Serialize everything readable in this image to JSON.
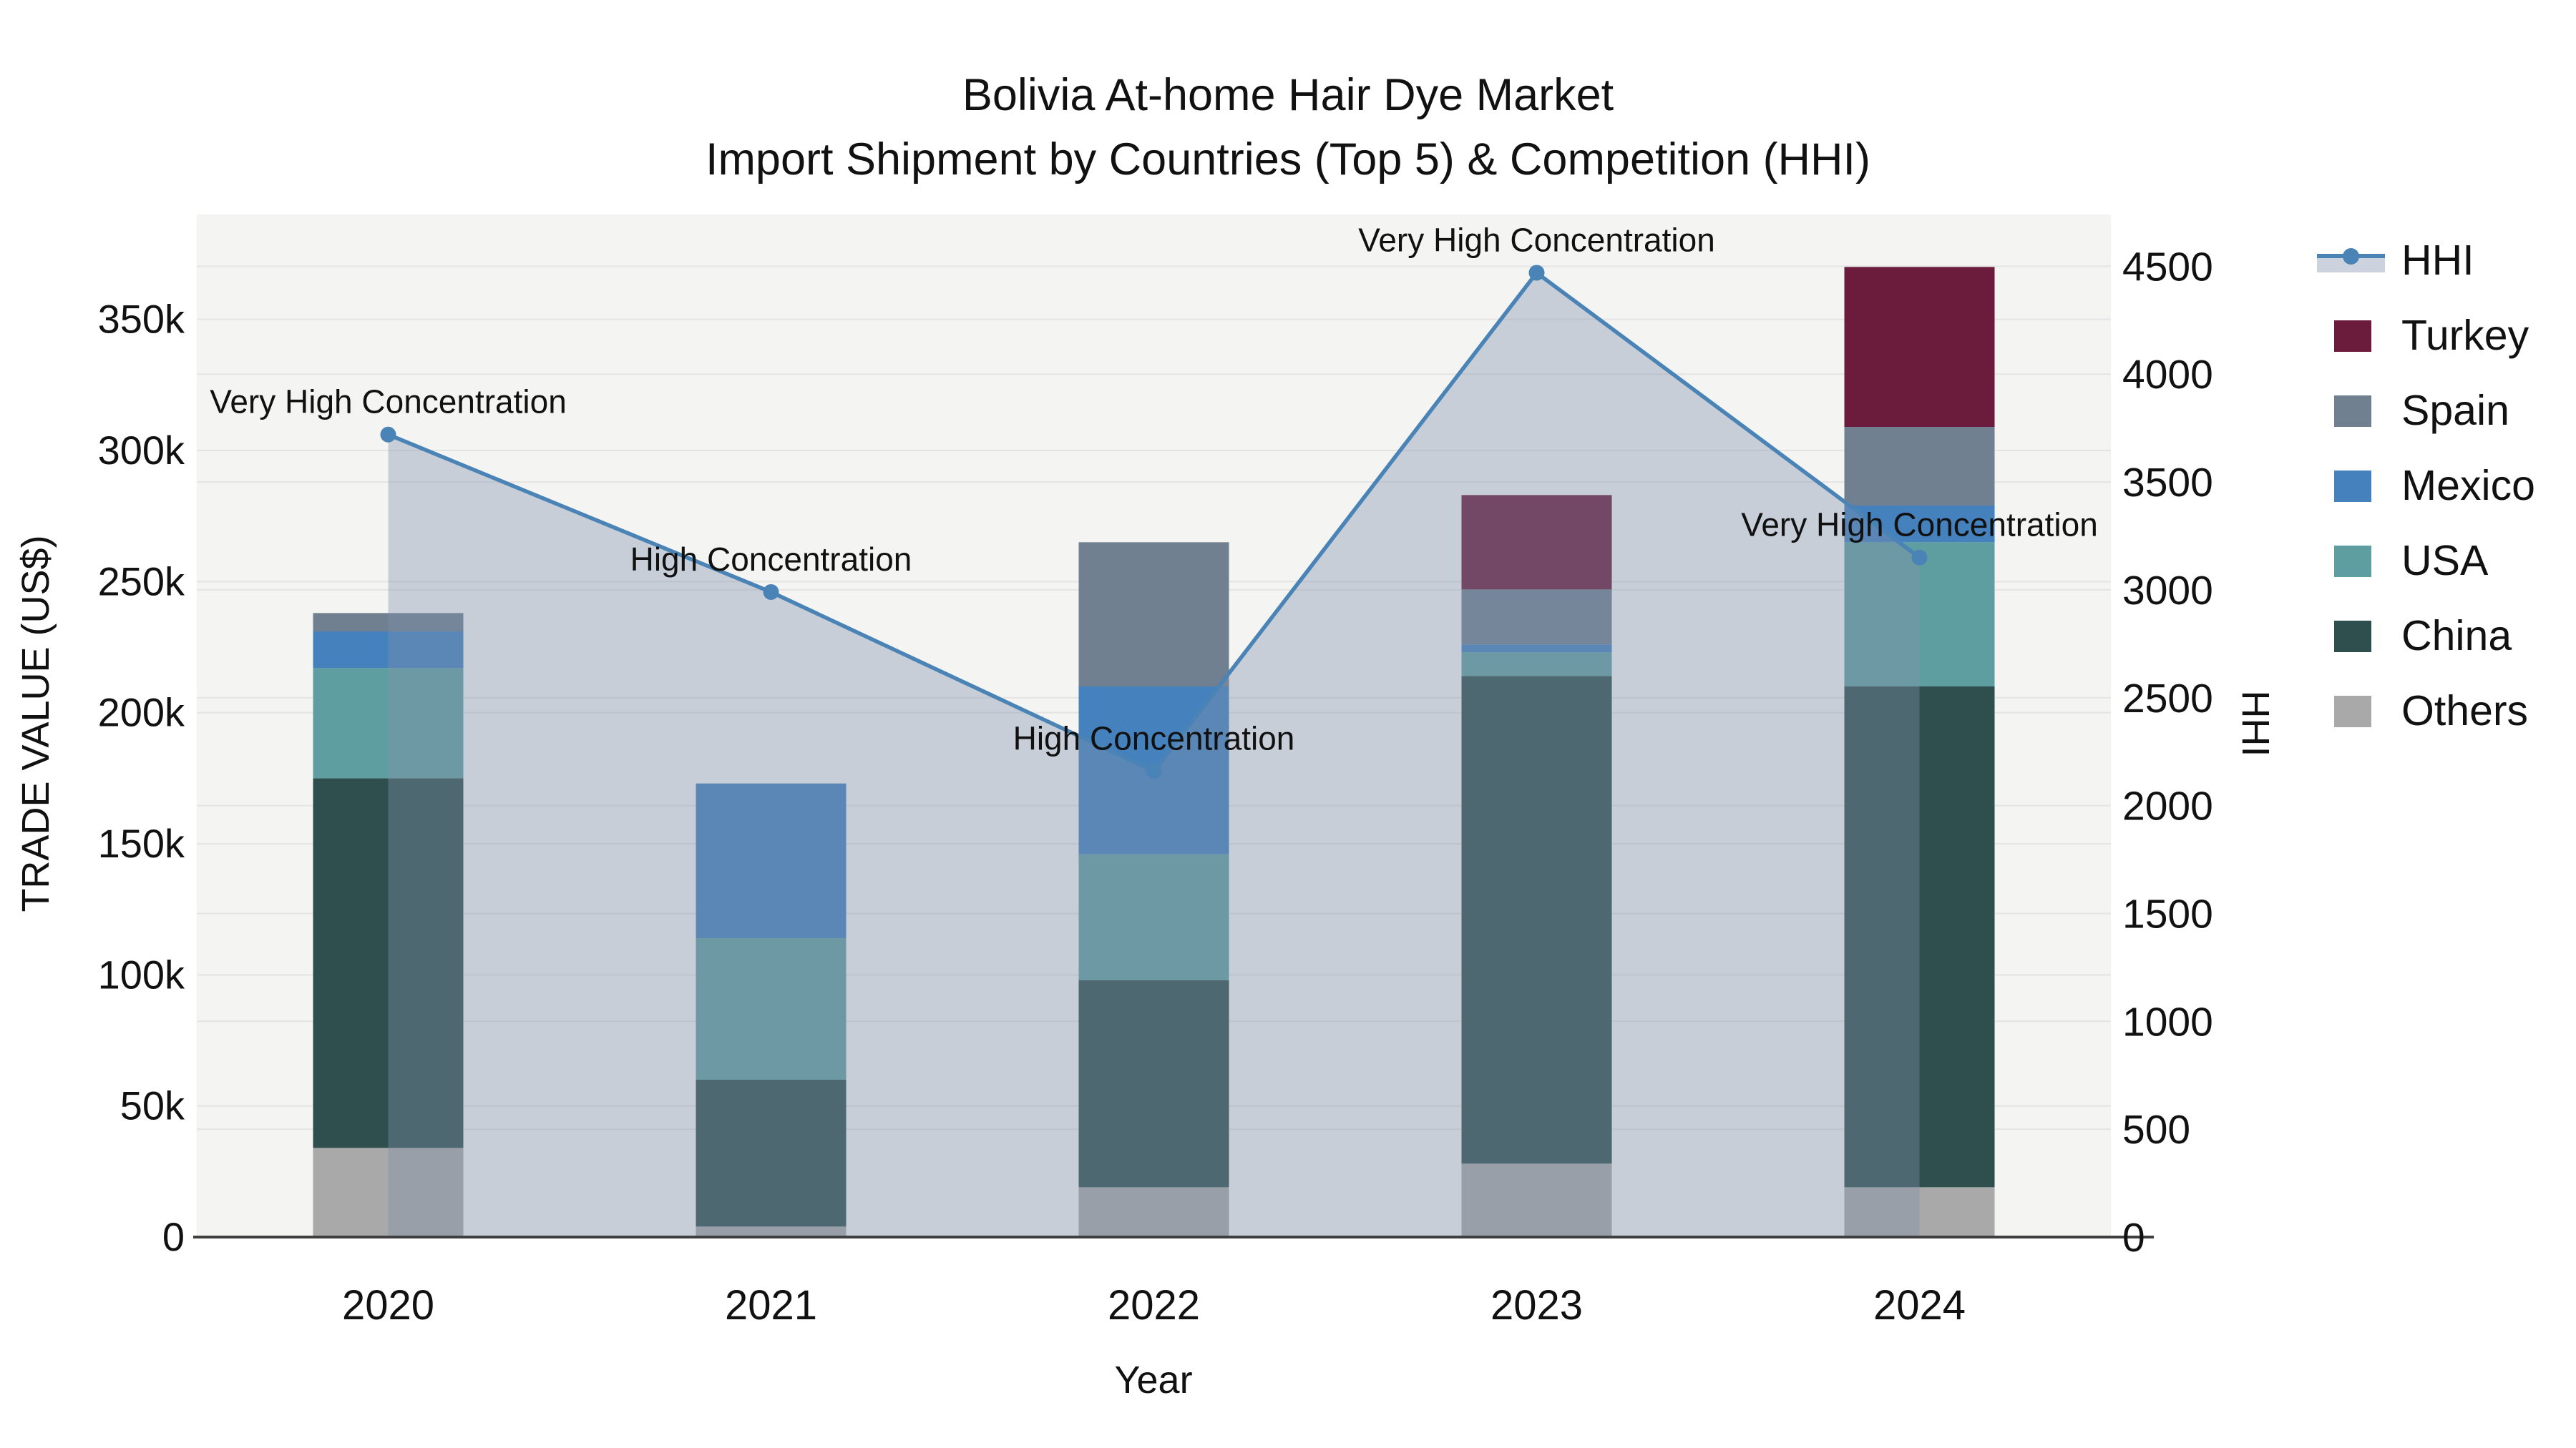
{
  "title": {
    "line1": "Bolivia At-home Hair Dye Market",
    "line2": "Import Shipment by Countries (Top 5) & Competition (HHI)"
  },
  "chart_data": {
    "type": "bar+line",
    "categories": [
      "2020",
      "2021",
      "2022",
      "2023",
      "2024"
    ],
    "series": [
      {
        "name": "Others",
        "color": "#a9a9a9",
        "values": [
          34000,
          4000,
          19000,
          28000,
          19000
        ]
      },
      {
        "name": "China",
        "color": "#2f4f4f",
        "values": [
          141000,
          56000,
          79000,
          186000,
          191000
        ]
      },
      {
        "name": "USA",
        "color": "#5f9ea0",
        "values": [
          42000,
          54000,
          48000,
          9000,
          55000
        ]
      },
      {
        "name": "Mexico",
        "color": "#4481bd",
        "values": [
          14000,
          59000,
          64000,
          3000,
          14000
        ]
      },
      {
        "name": "Spain",
        "color": "#708090",
        "values": [
          7000,
          0,
          55000,
          21000,
          30000
        ]
      },
      {
        "name": "Turkey",
        "color": "#6b1b3c",
        "values": [
          0,
          0,
          0,
          36000,
          61000
        ]
      }
    ],
    "line": {
      "name": "HHI",
      "color": "#4a83b5",
      "fill": "rgba(130,145,170,0.38)",
      "values": [
        3720,
        2990,
        2160,
        4470,
        3150
      ],
      "annotations": [
        "Very High Concentration",
        "High Concentration",
        "High Concentration",
        "Very High Concentration",
        "Very High Concentration"
      ]
    },
    "xlabel": "Year",
    "ylabel": "TRADE VALUE (US$)",
    "y2label": "HHI",
    "ylim": [
      0,
      390000
    ],
    "y2lim": [
      0,
      4740
    ],
    "yticks": {
      "values": [
        0,
        50000,
        100000,
        150000,
        200000,
        250000,
        300000,
        350000
      ],
      "labels": [
        "0",
        "50k",
        "100k",
        "150k",
        "200k",
        "250k",
        "300k",
        "350k"
      ]
    },
    "y2ticks": {
      "values": [
        0,
        500,
        1000,
        1500,
        2000,
        2500,
        3000,
        3500,
        4000,
        4500
      ],
      "labels": [
        "0",
        "500",
        "1000",
        "1500",
        "2000",
        "2500",
        "3000",
        "3500",
        "4000",
        "4500"
      ]
    },
    "grid": true,
    "legend_position": "right",
    "colors": {
      "plot_bg": "#f4f4f3",
      "grid": "#e4e4e4",
      "axis_line": "#3f3f3f",
      "text": "#111111"
    }
  },
  "legend": {
    "items": [
      {
        "label": "HHI",
        "type": "line",
        "color": "#4a83b5"
      },
      {
        "label": "Turkey",
        "type": "swatch",
        "color": "#6b1b3c"
      },
      {
        "label": "Spain",
        "type": "swatch",
        "color": "#708090"
      },
      {
        "label": "Mexico",
        "type": "swatch",
        "color": "#4481bd"
      },
      {
        "label": "USA",
        "type": "swatch",
        "color": "#5f9ea0"
      },
      {
        "label": "China",
        "type": "swatch",
        "color": "#2f4f4f"
      },
      {
        "label": "Others",
        "type": "swatch",
        "color": "#a9a9a9"
      }
    ]
  }
}
